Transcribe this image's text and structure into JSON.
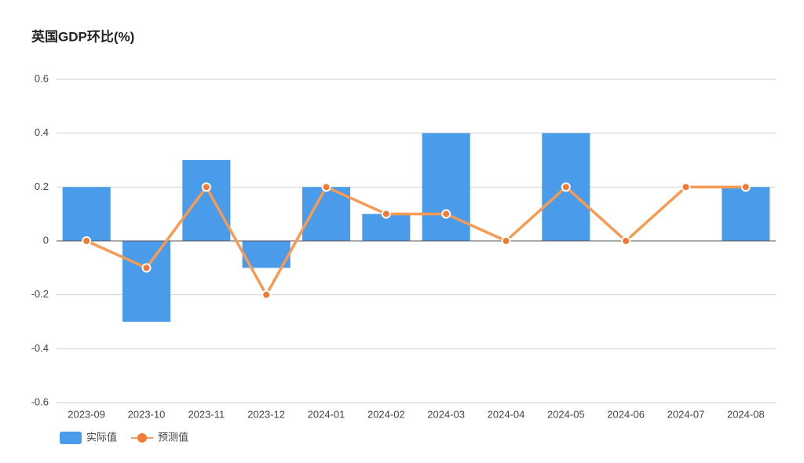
{
  "chart_data": {
    "type": "combo",
    "title": "英国GDP环比(%)",
    "categories": [
      "2023-09",
      "2023-10",
      "2023-11",
      "2023-12",
      "2024-01",
      "2024-02",
      "2024-03",
      "2024-04",
      "2024-05",
      "2024-06",
      "2024-07",
      "2024-08"
    ],
    "series": [
      {
        "name": "实际值",
        "type": "bar",
        "color": "#4a9bea",
        "values": [
          0.2,
          -0.3,
          0.3,
          -0.1,
          0.2,
          0.1,
          0.4,
          0,
          0.4,
          0,
          null,
          0.2
        ]
      },
      {
        "name": "预测值",
        "type": "line",
        "color": "#f79a52",
        "values": [
          0,
          -0.1,
          0.2,
          -0.2,
          0.2,
          0.1,
          0.1,
          0,
          0.2,
          0,
          0.2,
          0.2
        ]
      }
    ],
    "ylim": [
      -0.6,
      0.6
    ],
    "yticks": [
      -0.6,
      -0.4,
      -0.2,
      0,
      0.2,
      0.4,
      0.6
    ],
    "grid": true,
    "legend": "bottom-left"
  }
}
